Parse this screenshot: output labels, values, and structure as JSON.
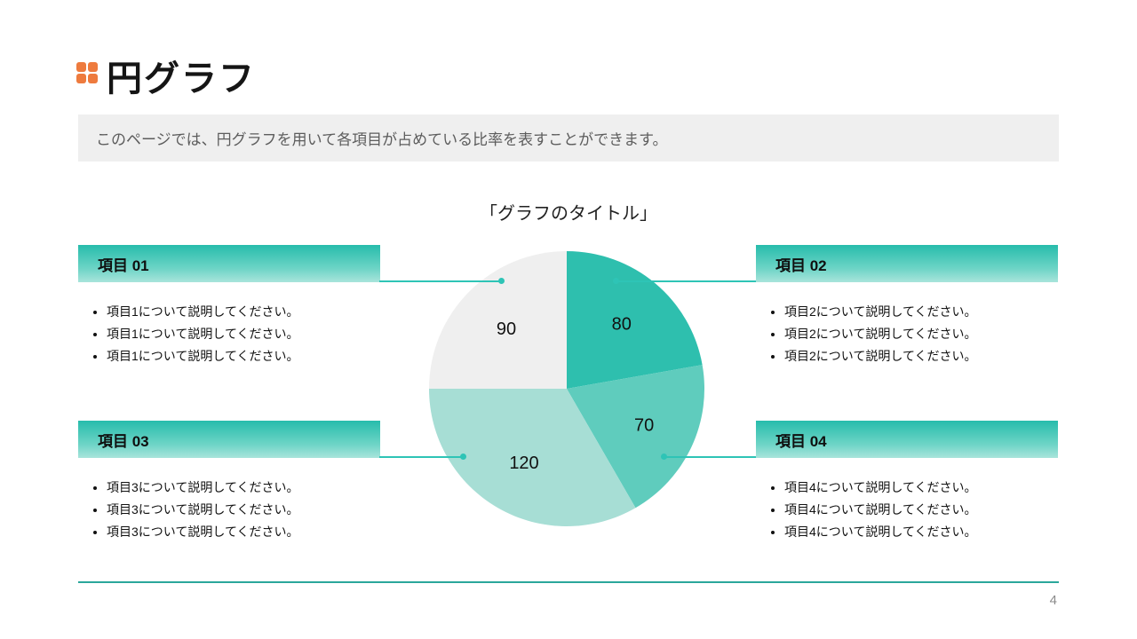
{
  "header": {
    "title": "円グラフ",
    "description": "このページでは、円グラフを用いて各項目が占めている比率を表すことができます。"
  },
  "chart_data": {
    "type": "pie",
    "title": "「グラフのタイトル」",
    "values": [
      80,
      70,
      120,
      90
    ],
    "labels": [
      "80",
      "70",
      "120",
      "90"
    ],
    "colors": [
      "#2ebfae",
      "#5fccbd",
      "#a7ded5",
      "#efefef"
    ],
    "start_angle_deg": 0,
    "direction": "clockwise",
    "label_radius_ratio": 0.62,
    "legend": "none"
  },
  "items": [
    {
      "label": "項目 01",
      "bullets": [
        "項目1について説明してください。",
        "項目1について説明してください。",
        "項目1について説明してください。"
      ]
    },
    {
      "label": "項目 02",
      "bullets": [
        "項目2について説明してください。",
        "項目2について説明してください。",
        "項目2について説明してください。"
      ]
    },
    {
      "label": "項目 03",
      "bullets": [
        "項目3について説明してください。",
        "項目3について説明してください。",
        "項目3について説明してください。"
      ]
    },
    {
      "label": "項目 04",
      "bullets": [
        "項目4について説明してください。",
        "項目4について説明してください。",
        "項目4について説明してください。"
      ]
    }
  ],
  "footer": {
    "page_number": "4"
  },
  "colors": {
    "accent_orange": "#ee7b3e",
    "theme_teal": "#2ec4b6",
    "banner_bg": "#efefef"
  }
}
